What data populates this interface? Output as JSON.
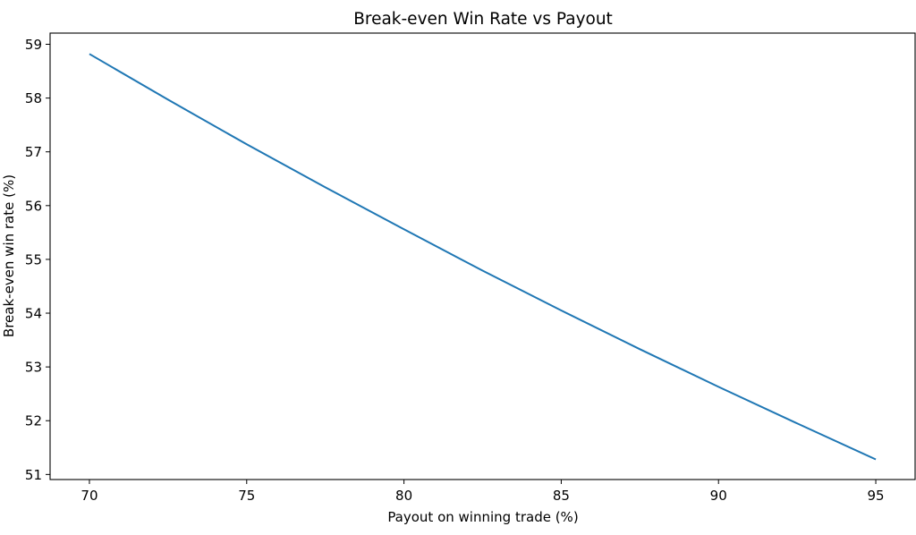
{
  "chart_data": {
    "type": "line",
    "title": "Break-even Win Rate vs Payout",
    "xlabel": "Payout on winning trade (%)",
    "ylabel": "Break-even win rate (%)",
    "xlim": [
      68.75,
      96.25
    ],
    "ylim": [
      50.906,
      59.208
    ],
    "xticks": [
      70,
      75,
      80,
      85,
      90,
      95
    ],
    "yticks": [
      51,
      52,
      53,
      54,
      55,
      56,
      57,
      58,
      59
    ],
    "grid": false,
    "series": [
      {
        "color": "#1f77b4",
        "x": [
          70,
          72.5,
          75,
          77.5,
          80,
          82.5,
          85,
          87.5,
          90,
          92.5,
          95
        ],
        "y": [
          58.82,
          57.97,
          57.14,
          56.34,
          55.56,
          54.79,
          54.05,
          53.33,
          52.63,
          51.95,
          51.28
        ]
      }
    ]
  }
}
